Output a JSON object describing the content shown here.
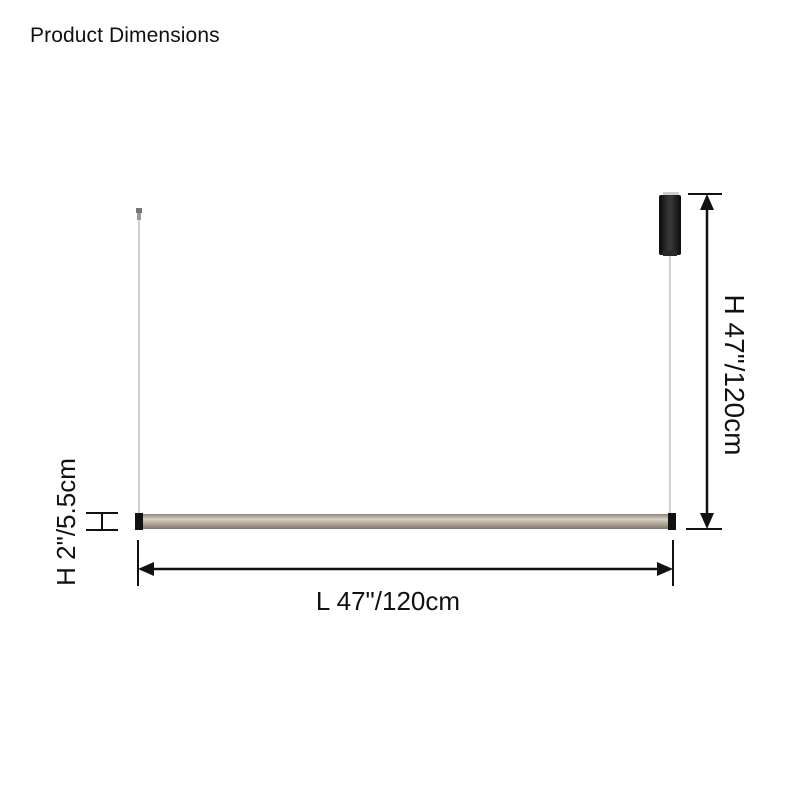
{
  "title": "Product Dimensions",
  "dimensions": {
    "overall_height": "H 47\"/120cm",
    "length": "L 47\"/120cm",
    "tube_height": "H 2\"/5.5cm"
  },
  "colors": {
    "line": "#111111",
    "tube": "#b9b0a2",
    "canopy": "#1a1a1a",
    "wire": "#9a9a9a"
  }
}
